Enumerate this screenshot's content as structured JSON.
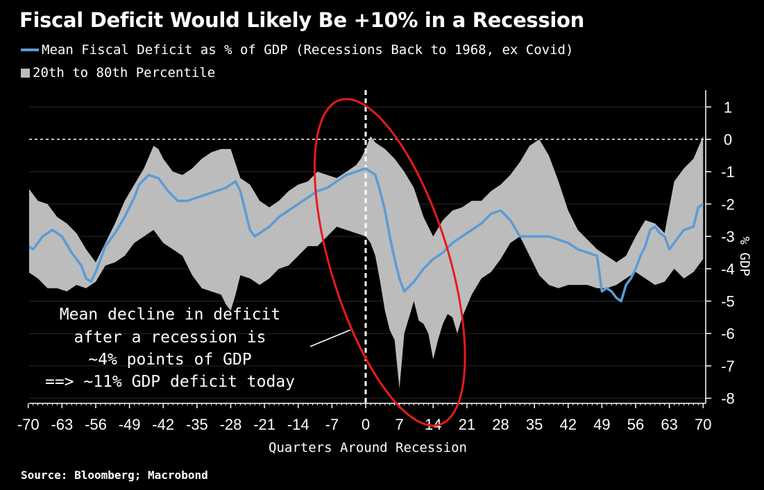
{
  "chart_data": {
    "type": "line",
    "title": "Fiscal Deficit Would Likely Be +10% in a Recession",
    "xlabel": "Quarters Around Recession",
    "ylabel": "% GDP",
    "xlim": [
      -71,
      71
    ],
    "ylim": [
      -8.4,
      1.4
    ],
    "x_ticks": [
      -70,
      -63,
      -56,
      -49,
      -42,
      -35,
      -28,
      -21,
      -14,
      -7,
      0,
      7,
      14,
      21,
      28,
      35,
      42,
      49,
      56,
      63,
      70
    ],
    "y_ticks": [
      1,
      0,
      -1,
      -2,
      -3,
      -4,
      -5,
      -6,
      -7,
      -8
    ],
    "reference_lines": {
      "horizontal_y": 0,
      "vertical_x": 0
    },
    "series": [
      {
        "name": "Mean Fiscal Deficit as % of GDP (Recessions Back to 1968, ex Covid)",
        "kind": "line",
        "color": "#5b9bd5",
        "x": [
          -70,
          -69,
          -67,
          -65,
          -63,
          -61,
          -59,
          -58,
          -57,
          -56,
          -54,
          -52,
          -50,
          -48,
          -47,
          -45,
          -43,
          -41,
          -39,
          -37,
          -35,
          -33,
          -31,
          -29,
          -27,
          -26,
          -25,
          -24,
          -23,
          -22,
          -20,
          -18,
          -16,
          -14,
          -12,
          -10,
          -8,
          -6,
          -4,
          -2,
          0,
          1,
          2,
          3,
          4,
          5,
          6,
          7,
          8,
          10,
          12,
          14,
          16,
          18,
          20,
          22,
          24,
          26,
          28,
          30,
          32,
          34,
          36,
          38,
          40,
          42,
          44,
          46,
          48,
          49,
          50,
          51,
          52,
          53,
          54,
          55,
          56,
          57,
          58,
          59,
          60,
          61,
          62,
          63,
          64,
          66,
          68,
          69,
          70
        ],
        "values": [
          -3.3,
          -3.4,
          -3.0,
          -2.8,
          -3.0,
          -3.5,
          -3.9,
          -4.3,
          -4.4,
          -4.1,
          -3.3,
          -2.9,
          -2.4,
          -1.8,
          -1.4,
          -1.1,
          -1.2,
          -1.6,
          -1.9,
          -1.9,
          -1.8,
          -1.7,
          -1.6,
          -1.5,
          -1.3,
          -1.6,
          -2.2,
          -2.8,
          -3.0,
          -2.9,
          -2.7,
          -2.4,
          -2.2,
          -2.0,
          -1.8,
          -1.6,
          -1.5,
          -1.3,
          -1.1,
          -1.0,
          -0.9,
          -1.0,
          -1.1,
          -1.6,
          -2.2,
          -3.0,
          -3.7,
          -4.3,
          -4.7,
          -4.4,
          -4.0,
          -3.7,
          -3.5,
          -3.2,
          -3.0,
          -2.8,
          -2.6,
          -2.3,
          -2.2,
          -2.5,
          -3.0,
          -3.0,
          -3.0,
          -3.0,
          -3.1,
          -3.2,
          -3.4,
          -3.5,
          -3.6,
          -4.7,
          -4.6,
          -4.7,
          -4.9,
          -5.0,
          -4.5,
          -4.3,
          -4.0,
          -3.6,
          -3.3,
          -2.8,
          -2.7,
          -2.9,
          -3.0,
          -3.4,
          -3.2,
          -2.8,
          -2.7,
          -2.1,
          -2.0
        ]
      },
      {
        "name": "20th to 80th Percentile",
        "kind": "band",
        "color": "#bcbcbc",
        "upper": {
          "x": [
            -70,
            -68,
            -66,
            -64,
            -62,
            -60,
            -58,
            -56,
            -54,
            -52,
            -50,
            -48,
            -46,
            -44,
            -43,
            -42,
            -40,
            -38,
            -36,
            -34,
            -32,
            -30,
            -28,
            -26,
            -24,
            -22,
            -20,
            -18,
            -16,
            -14,
            -12,
            -10,
            -8,
            -6,
            -4,
            -2,
            -1,
            0,
            1,
            2,
            4,
            6,
            8,
            10,
            12,
            14,
            16,
            18,
            20,
            22,
            24,
            26,
            28,
            30,
            32,
            34,
            36,
            38,
            40,
            42,
            44,
            46,
            48,
            50,
            52,
            54,
            56,
            58,
            60,
            62,
            64,
            66,
            68,
            70
          ],
          "values": [
            -1.5,
            -1.9,
            -2.0,
            -2.4,
            -2.6,
            -2.9,
            -3.4,
            -3.8,
            -3.2,
            -2.6,
            -1.9,
            -1.4,
            -0.9,
            -0.2,
            -0.3,
            -0.6,
            -1.0,
            -1.1,
            -0.9,
            -0.6,
            -0.4,
            -0.3,
            -0.3,
            -1.2,
            -1.4,
            -1.9,
            -2.1,
            -1.9,
            -1.6,
            -1.4,
            -1.3,
            -1.0,
            -1.1,
            -1.2,
            -1.0,
            -0.8,
            -0.6,
            -0.3,
            0.1,
            -0.1,
            -0.3,
            -0.6,
            -1.0,
            -1.5,
            -2.4,
            -3.0,
            -2.5,
            -2.2,
            -2.1,
            -1.9,
            -1.9,
            -1.6,
            -1.4,
            -1.1,
            -0.7,
            -0.2,
            0.0,
            -0.5,
            -1.3,
            -2.2,
            -2.8,
            -3.1,
            -3.4,
            -3.6,
            -3.8,
            -3.6,
            -3.0,
            -2.5,
            -2.6,
            -2.9,
            -1.3,
            -0.9,
            -0.6,
            0.1
          ]
        },
        "lower": {
          "x": [
            -70,
            -68,
            -66,
            -64,
            -62,
            -60,
            -58,
            -56,
            -54,
            -52,
            -50,
            -48,
            -46,
            -44,
            -42,
            -40,
            -38,
            -36,
            -34,
            -32,
            -30,
            -29,
            -28,
            -27,
            -26,
            -24,
            -22,
            -20,
            -18,
            -16,
            -14,
            -12,
            -10,
            -8,
            -6,
            -4,
            -2,
            0,
            1,
            2,
            3,
            4,
            5,
            6,
            7,
            8,
            9,
            10,
            11,
            12,
            13,
            14,
            15,
            16,
            17,
            18,
            19,
            20,
            22,
            24,
            26,
            28,
            30,
            32,
            34,
            36,
            38,
            40,
            42,
            44,
            46,
            48,
            50,
            52,
            54,
            56,
            58,
            60,
            62,
            64,
            66,
            68,
            70
          ],
          "values": [
            -4.1,
            -4.3,
            -4.6,
            -4.6,
            -4.7,
            -4.5,
            -4.6,
            -4.4,
            -3.9,
            -3.8,
            -3.6,
            -3.2,
            -3.0,
            -2.8,
            -3.2,
            -3.4,
            -3.6,
            -4.2,
            -4.6,
            -4.7,
            -4.8,
            -5.1,
            -5.3,
            -4.8,
            -4.2,
            -4.3,
            -4.5,
            -4.3,
            -4.0,
            -3.9,
            -3.6,
            -3.3,
            -3.3,
            -3.0,
            -2.7,
            -2.8,
            -2.9,
            -3.0,
            -3.2,
            -3.6,
            -4.4,
            -5.3,
            -5.9,
            -6.2,
            -7.7,
            -6.0,
            -5.5,
            -5.0,
            -5.6,
            -5.7,
            -6.0,
            -6.8,
            -6.2,
            -5.7,
            -5.4,
            -5.5,
            -6.0,
            -5.5,
            -4.8,
            -4.3,
            -4.1,
            -3.7,
            -3.2,
            -3.0,
            -3.6,
            -4.2,
            -4.5,
            -4.6,
            -4.5,
            -4.5,
            -4.5,
            -4.6,
            -4.6,
            -4.5,
            -4.3,
            -4.1,
            -4.3,
            -4.5,
            -4.4,
            -4.0,
            -4.3,
            -4.1,
            -3.7
          ]
        }
      }
    ],
    "annotations": [
      {
        "text_lines": [
          "Mean decline in deficit",
          "after a recession is",
          "~4% points of GDP",
          "==> ~11% GDP deficit today"
        ],
        "highlight": "red ellipse around quarters -10 to 20",
        "highlight_color": "#e81a1a"
      }
    ]
  },
  "legend": {
    "line_label": "Mean Fiscal Deficit as % of GDP (Recessions Back to 1968, ex Covid)",
    "band_label": "20th to 80th Percentile"
  },
  "source": "Source: Bloomberg; Macrobond"
}
